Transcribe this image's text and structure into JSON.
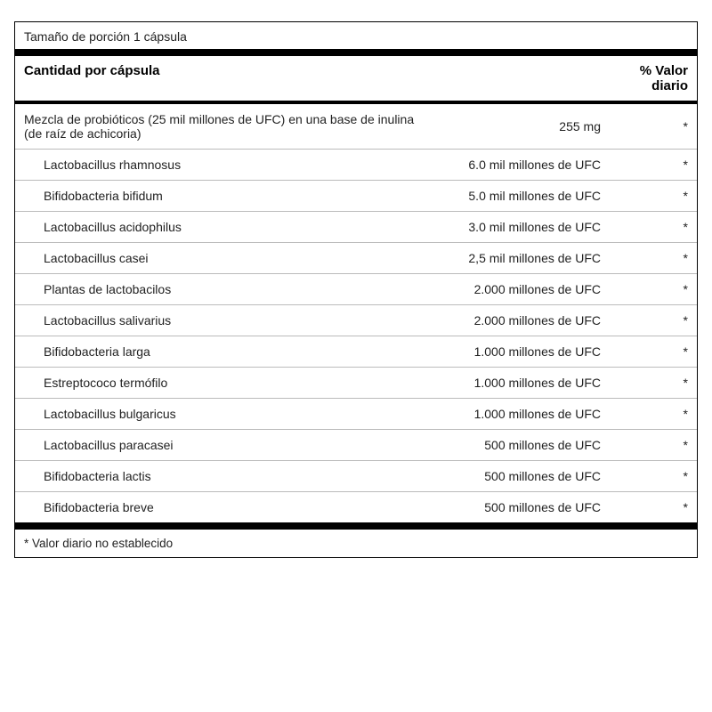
{
  "serving_size": "Tamaño de porción 1 cápsula",
  "headers": {
    "amount": "Cantidad por cápsula",
    "dv": "% Valor diario"
  },
  "main_row": {
    "name": "Mezcla de probióticos (25 mil millones de UFC) en una base de inulina (de raíz de achicoria)",
    "amount": "255 mg",
    "dv": "*"
  },
  "sub_rows": [
    {
      "name": "Lactobacillus rhamnosus",
      "amount": "6.0 mil millones de UFC",
      "dv": "*"
    },
    {
      "name": "Bifidobacteria bifidum",
      "amount": "5.0 mil millones de UFC",
      "dv": "*"
    },
    {
      "name": "Lactobacillus acidophilus",
      "amount": "3.0 mil millones de UFC",
      "dv": "*"
    },
    {
      "name": "Lactobacillus casei",
      "amount": "2,5 mil millones de UFC",
      "dv": "*"
    },
    {
      "name": "Plantas de lactobacilos",
      "amount": "2.000 millones de UFC",
      "dv": "*"
    },
    {
      "name": "Lactobacillus salivarius",
      "amount": "2.000 millones de UFC",
      "dv": "*"
    },
    {
      "name": "Bifidobacteria larga",
      "amount": "1.000 millones de UFC",
      "dv": "*"
    },
    {
      "name": "Estreptococo termófilo",
      "amount": "1.000 millones de UFC",
      "dv": "*"
    },
    {
      "name": "Lactobacillus bulgaricus",
      "amount": "1.000 millones de UFC",
      "dv": "*"
    },
    {
      "name": "Lactobacillus paracasei",
      "amount": "500 millones de UFC",
      "dv": "*"
    },
    {
      "name": "Bifidobacteria lactis",
      "amount": "500 millones de UFC",
      "dv": "*"
    },
    {
      "name": "Bifidobacteria breve",
      "amount": "500 millones de UFC",
      "dv": "*"
    }
  ],
  "footnote": "* Valor diario no establecido"
}
